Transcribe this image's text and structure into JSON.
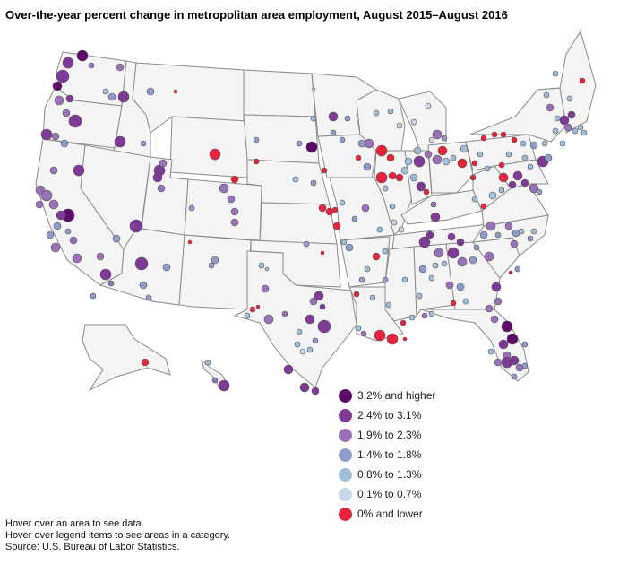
{
  "title": "Over-the-year percent change in metropolitan area employment, August 2015–August 2016",
  "legend": {
    "items": [
      {
        "label": "3.2% and higher",
        "color": "#5e0a6b"
      },
      {
        "label": "2.4% to 3.1%",
        "color": "#7f3a98"
      },
      {
        "label": "1.9% to 2.3%",
        "color": "#9a70b8"
      },
      {
        "label": "1.4% to 1.8%",
        "color": "#8f9bc9"
      },
      {
        "label": "0.8% to 1.3%",
        "color": "#9fbcd8"
      },
      {
        "label": "0.1% to 0.7%",
        "color": "#c7d6e8"
      },
      {
        "label": "0% and lower",
        "color": "#e8243c"
      }
    ]
  },
  "notes": {
    "hover_area": "Hover over an area to see data.",
    "hover_legend": "Hover over legend items to see areas in a category.",
    "source": "Source: U.S. Bureau of Labor Statistics."
  },
  "colors": {
    "state_fill": "#f4f4f4",
    "state_border": "#8a8a8a",
    "bubble_stroke": "#555555"
  }
}
